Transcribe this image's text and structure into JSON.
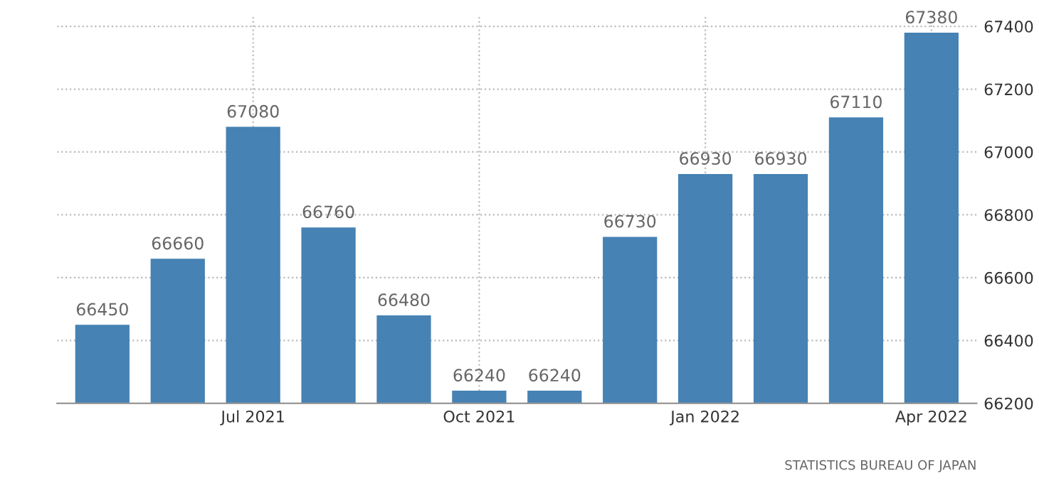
{
  "chart_data": {
    "type": "bar",
    "categories": [
      null,
      null,
      "Jul 2021",
      null,
      null,
      "Oct 2021",
      null,
      null,
      "Jan 2022",
      null,
      null,
      "Apr 2022"
    ],
    "values": [
      66450,
      66660,
      67080,
      66760,
      66480,
      66240,
      66240,
      66730,
      66930,
      66930,
      67110,
      67380
    ],
    "color": "#4682b4",
    "ylim": [
      66200,
      67430
    ],
    "yticks": [
      66200,
      66400,
      66600,
      66800,
      67000,
      67200,
      67400
    ],
    "grid": true,
    "data_labels": true,
    "annotations": [
      "STATISTICS BUREAU OF JAPAN"
    ]
  }
}
